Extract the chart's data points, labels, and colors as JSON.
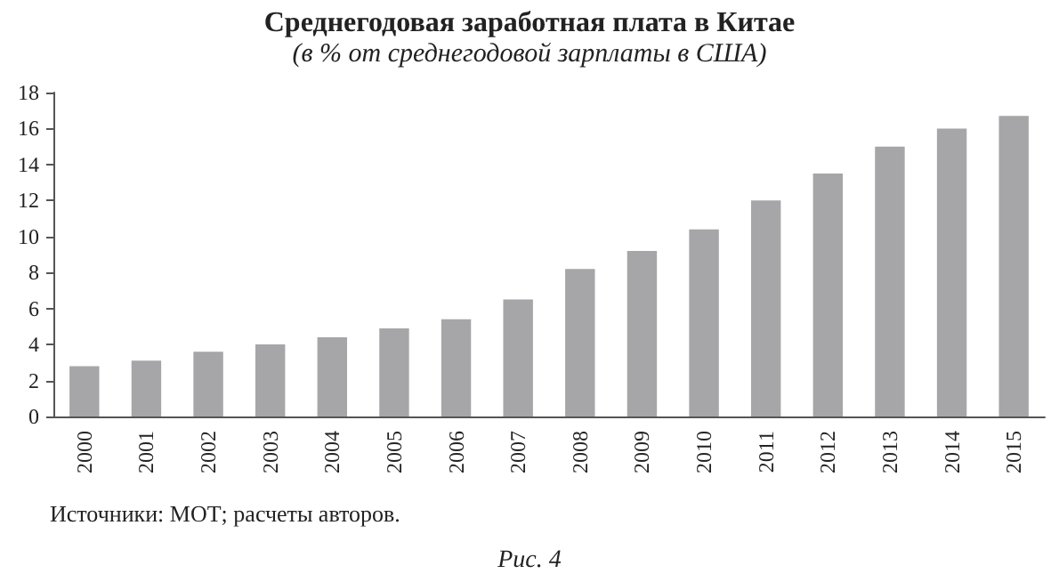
{
  "chart_data": {
    "type": "bar",
    "title": "Среднегодовая заработная плата в Китае",
    "subtitle": "(в % от среднегодовой зарплаты в США)",
    "categories": [
      "2000",
      "2001",
      "2002",
      "2003",
      "2004",
      "2005",
      "2006",
      "2007",
      "2008",
      "2009",
      "2010",
      "2011",
      "2012",
      "2013",
      "2014",
      "2015"
    ],
    "values": [
      2.8,
      3.1,
      3.6,
      4.0,
      4.4,
      4.9,
      5.4,
      6.5,
      8.2,
      9.2,
      10.4,
      12.0,
      13.5,
      15.0,
      16.0,
      16.7
    ],
    "color": "#a6a6a8",
    "ylim": [
      0,
      18
    ],
    "yticks": [
      0,
      2,
      4,
      6,
      8,
      10,
      12,
      14,
      16,
      18
    ],
    "grid": false,
    "annotations": [
      "Источники: МОТ; расчеты авторов.",
      "Рис. 4"
    ]
  }
}
